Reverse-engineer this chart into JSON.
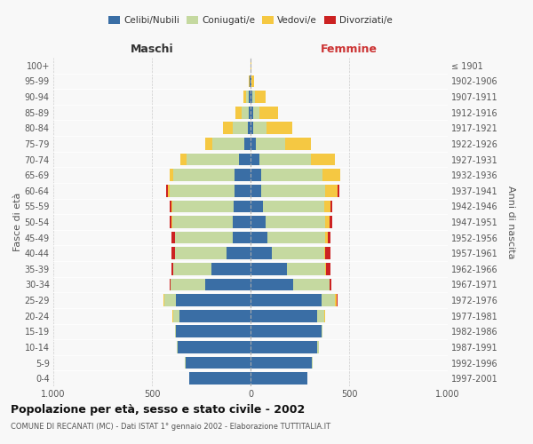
{
  "age_groups": [
    "0-4",
    "5-9",
    "10-14",
    "15-19",
    "20-24",
    "25-29",
    "30-34",
    "35-39",
    "40-44",
    "45-49",
    "50-54",
    "55-59",
    "60-64",
    "65-69",
    "70-74",
    "75-79",
    "80-84",
    "85-89",
    "90-94",
    "95-99",
    "100+"
  ],
  "birth_years": [
    "1997-2001",
    "1992-1996",
    "1987-1991",
    "1982-1986",
    "1977-1981",
    "1972-1976",
    "1967-1971",
    "1962-1966",
    "1957-1961",
    "1952-1956",
    "1947-1951",
    "1942-1946",
    "1937-1941",
    "1932-1936",
    "1927-1931",
    "1922-1926",
    "1917-1921",
    "1912-1916",
    "1907-1911",
    "1902-1906",
    "≤ 1901"
  ],
  "males": {
    "celibi": [
      310,
      330,
      370,
      380,
      360,
      380,
      230,
      200,
      120,
      90,
      90,
      85,
      80,
      80,
      60,
      30,
      15,
      10,
      8,
      4,
      2
    ],
    "coniugati": [
      0,
      5,
      5,
      5,
      30,
      55,
      175,
      190,
      265,
      295,
      305,
      310,
      330,
      310,
      265,
      165,
      75,
      35,
      15,
      2,
      0
    ],
    "vedovi": [
      0,
      0,
      0,
      0,
      5,
      5,
      0,
      0,
      0,
      0,
      5,
      5,
      10,
      20,
      30,
      35,
      50,
      30,
      15,
      2,
      0
    ],
    "divorziati": [
      0,
      0,
      0,
      0,
      0,
      0,
      5,
      10,
      15,
      15,
      10,
      10,
      10,
      0,
      0,
      0,
      0,
      0,
      0,
      0,
      0
    ]
  },
  "females": {
    "nubili": [
      290,
      310,
      340,
      360,
      340,
      360,
      215,
      185,
      110,
      85,
      75,
      65,
      55,
      55,
      45,
      25,
      15,
      15,
      8,
      4,
      2
    ],
    "coniugate": [
      0,
      5,
      5,
      5,
      35,
      70,
      185,
      195,
      265,
      295,
      305,
      310,
      325,
      310,
      260,
      150,
      65,
      30,
      15,
      2,
      0
    ],
    "vedove": [
      0,
      0,
      0,
      0,
      5,
      5,
      0,
      5,
      5,
      10,
      20,
      30,
      60,
      90,
      125,
      130,
      130,
      95,
      55,
      10,
      2
    ],
    "divorziate": [
      0,
      0,
      0,
      0,
      0,
      5,
      10,
      20,
      25,
      15,
      15,
      10,
      10,
      0,
      0,
      0,
      0,
      0,
      0,
      0,
      0
    ]
  },
  "color_celibi": "#3a6ea5",
  "color_coniugati": "#c5d9a0",
  "color_vedovi": "#f5c842",
  "color_divorziati": "#cc2222",
  "xlim": 1000,
  "title": "Popolazione per età, sesso e stato civile - 2002",
  "subtitle": "COMUNE DI RECANATI (MC) - Dati ISTAT 1° gennaio 2002 - Elaborazione TUTTITALIA.IT",
  "ylabel_left": "Fasce di età",
  "ylabel_right": "Anni di nascita",
  "xlabel_left": "Maschi",
  "xlabel_right": "Femmine",
  "bg_color": "#f8f8f8"
}
